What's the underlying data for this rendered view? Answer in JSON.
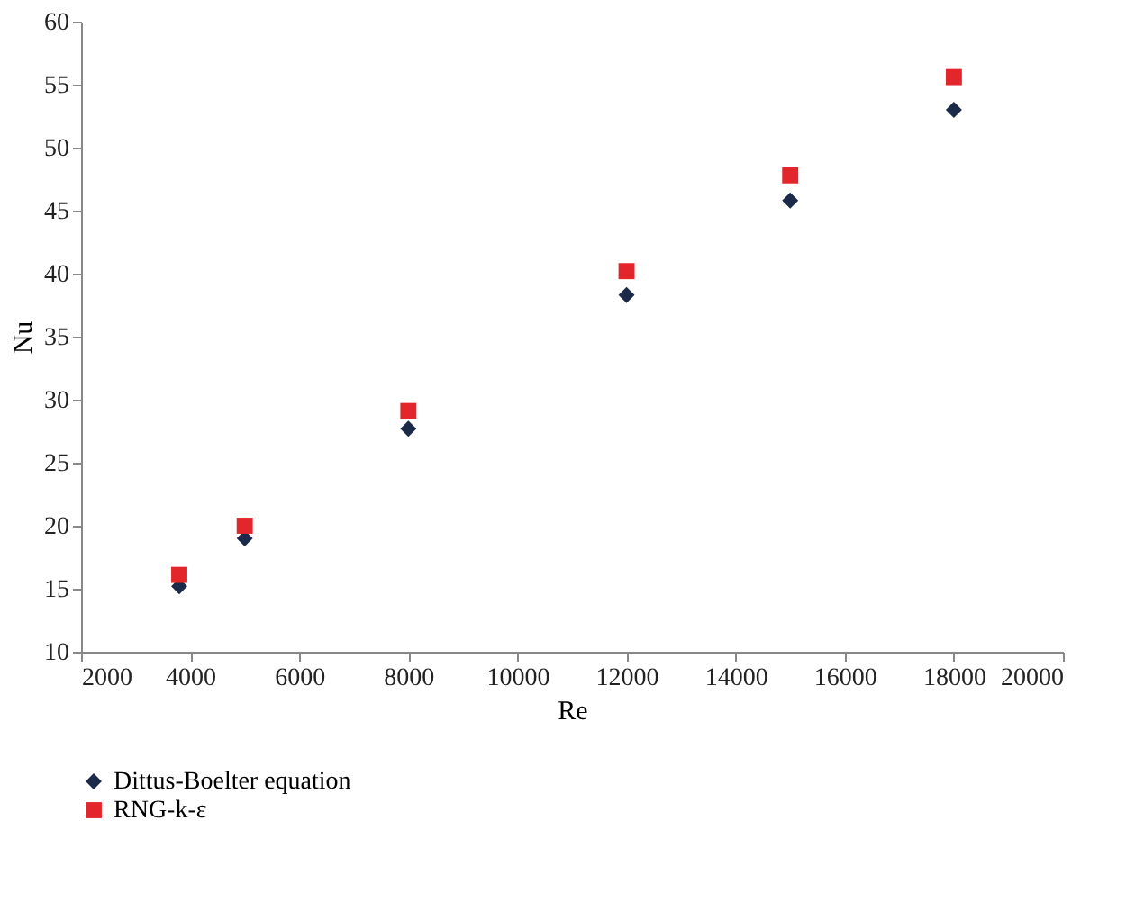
{
  "chart_data": {
    "type": "scatter",
    "xlabel": "Re",
    "ylabel": "Nu",
    "xlim": [
      2000,
      20000
    ],
    "xticks": [
      2000,
      4000,
      6000,
      8000,
      10000,
      12000,
      14000,
      16000,
      18000,
      20000
    ],
    "ylim": [
      10,
      60
    ],
    "yticks": [
      10,
      15,
      20,
      25,
      30,
      35,
      40,
      45,
      50,
      55,
      60
    ],
    "x": [
      3800,
      5000,
      8000,
      12000,
      15000,
      18000
    ],
    "grid": false,
    "legend": "bottom left",
    "series": [
      {
        "name": "Dittus-Boelter equation",
        "color": "#1b2a48",
        "marker": "diamond",
        "values": [
          15.2,
          19.0,
          27.7,
          38.3,
          45.8,
          53.0
        ]
      },
      {
        "name": "RNG-k-ε",
        "color": "#e3262b",
        "marker": "square",
        "values": [
          16.1,
          20.0,
          29.1,
          40.2,
          47.8,
          55.6
        ]
      }
    ]
  }
}
